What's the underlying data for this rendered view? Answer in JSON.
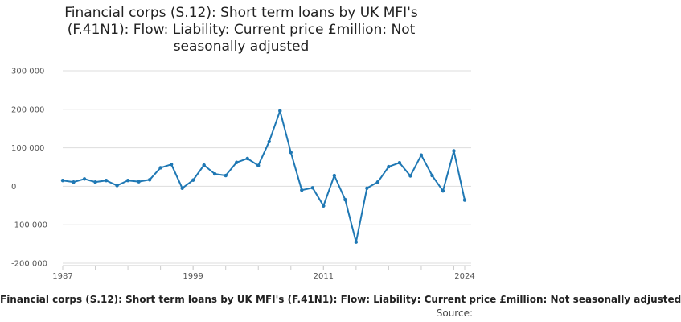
{
  "title_lines": [
    "Financial corps (S.12): Short term loans by UK MFI's",
    "(F.41N1): Flow: Liability: Current price £million: Not",
    "seasonally adjusted"
  ],
  "footer": {
    "series_label": "Financial corps (S.12): Short term loans by UK MFI's (F.41N1): Flow: Liability: Current price £million: Not seasonally adjusted",
    "source_label": "Source:"
  },
  "colors": {
    "line": "#1f78b4",
    "gridline": "#dddddd",
    "axis": "#cccccc"
  },
  "chart_data": {
    "type": "line",
    "title": "Financial corps (S.12): Short term loans by UK MFI's (F.41N1): Flow: Liability: Current price £million: Not seasonally adjusted",
    "xlabel": "",
    "ylabel": "",
    "xlim": [
      1987,
      2024
    ],
    "ylim": [
      -200000,
      300000
    ],
    "x_tick_labels": [
      "1987",
      "1999",
      "2011",
      "2024"
    ],
    "y_tick_labels": [
      "300 000",
      "200 000",
      "100 000",
      "0",
      "-100 000",
      "-200 000"
    ],
    "grid": "horizontal",
    "legend": "none",
    "x": [
      1987,
      1988,
      1989,
      1990,
      1991,
      1992,
      1993,
      1994,
      1995,
      1996,
      1997,
      1998,
      1999,
      2000,
      2001,
      2002,
      2003,
      2004,
      2005,
      2006,
      2007,
      2008,
      2009,
      2010,
      2011,
      2012,
      2013,
      2014,
      2015,
      2016,
      2017,
      2018,
      2019,
      2020,
      2021,
      2022,
      2023,
      2024
    ],
    "values": [
      15000,
      11000,
      19000,
      11000,
      15000,
      2000,
      15000,
      12000,
      17000,
      48000,
      57000,
      -5000,
      16000,
      55000,
      32000,
      28000,
      62000,
      72000,
      54000,
      116000,
      196000,
      88000,
      -10000,
      -4000,
      -51000,
      28000,
      -35000,
      -145000,
      -5000,
      11000,
      51000,
      61000,
      27000,
      81000,
      28000,
      -12000,
      92000,
      -36000
    ]
  }
}
